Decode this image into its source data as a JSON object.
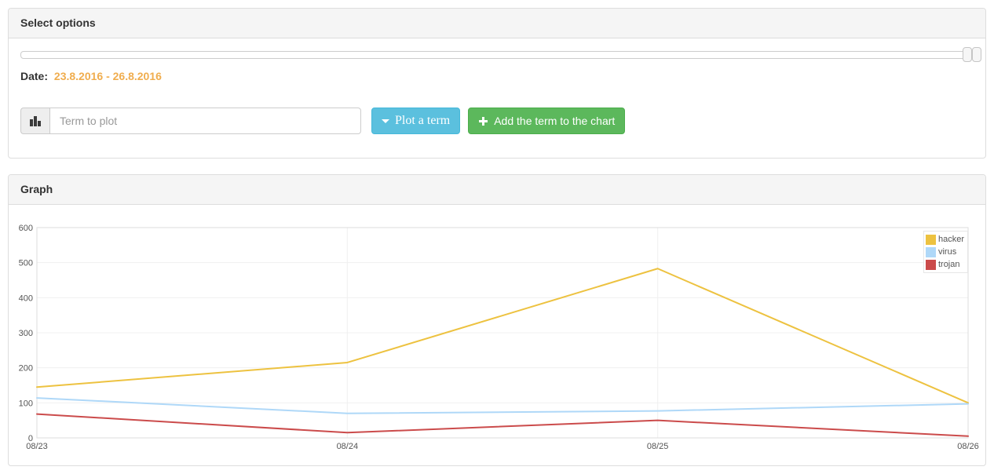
{
  "options_panel": {
    "title": "Select options",
    "slider": {
      "type": "date-range",
      "handle_count": 2,
      "handles_position": "right-end"
    },
    "date_label": "Date:",
    "date_range": "23.8.2016 - 26.8.2016",
    "date_range_color": "#f0ad4e",
    "term_input": {
      "placeholder": "Term to plot",
      "value": ""
    },
    "addon_icon": "bar-chart-icon",
    "plot_term_button": {
      "label": "Plot a term",
      "icon": "caret-down-icon",
      "color": "#5bc0de"
    },
    "add_term_button": {
      "label": "Add the term to the chart",
      "icon": "plus-icon",
      "color": "#5cb85c"
    }
  },
  "graph_panel": {
    "title": "Graph"
  },
  "chart_data": {
    "type": "line",
    "title": "",
    "xlabel": "",
    "ylabel": "",
    "categories": [
      "08/23",
      "08/24",
      "08/25",
      "08/26"
    ],
    "series": [
      {
        "name": "hacker",
        "color": "#edc240",
        "values": [
          145,
          215,
          483,
          100
        ]
      },
      {
        "name": "virus",
        "color": "#afd8f8",
        "values": [
          114,
          70,
          77,
          97
        ]
      },
      {
        "name": "trojan",
        "color": "#cb4b4b",
        "values": [
          68,
          15,
          50,
          5
        ]
      }
    ],
    "ylim": [
      0,
      600
    ],
    "ytick_step": 100,
    "yticks": [
      0,
      100,
      200,
      300,
      400,
      500,
      600
    ],
    "grid": true,
    "grid_color": "#f0f0f0",
    "border_color": "#dddddd",
    "tick_label_color": "#545454",
    "legend_position": "top-right"
  }
}
